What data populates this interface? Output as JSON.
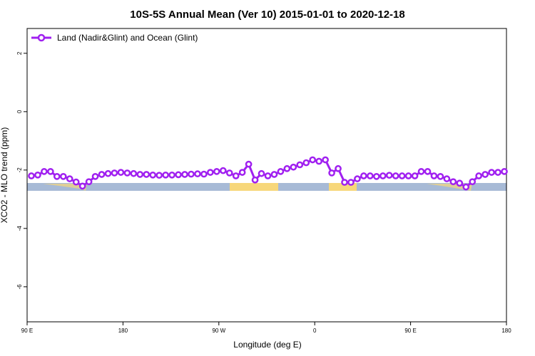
{
  "chart_data": {
    "type": "line",
    "title": "10S-5S Annual Mean (Ver 10)   2015-01-01 to 2020-12-18",
    "x_label": "Longitude (deg E)",
    "y_label": "XCO2 - MLO trend (ppm)",
    "x": [
      94,
      100,
      106,
      112,
      118,
      124,
      130,
      136,
      142,
      148,
      154,
      160,
      166,
      172,
      178,
      184,
      190,
      196,
      202,
      208,
      214,
      220,
      226,
      232,
      238,
      244,
      250,
      256,
      262,
      268,
      274,
      280,
      286,
      292,
      298,
      304,
      310,
      316,
      322,
      328,
      334,
      340,
      346,
      352,
      358,
      364,
      370,
      376,
      382,
      388,
      394,
      400,
      406,
      412,
      418,
      424,
      430,
      436,
      442,
      448,
      454,
      460,
      466,
      472,
      478,
      484,
      490,
      496,
      502,
      508,
      514,
      520,
      526,
      532,
      538
    ],
    "series": [
      {
        "name": "Land (Nadir&Glint) and Ocean (Glint)",
        "color": "#a020f0",
        "values": [
          -2.2,
          -2.17,
          -2.05,
          -2.05,
          -2.22,
          -2.22,
          -2.3,
          -2.41,
          -2.55,
          -2.4,
          -2.22,
          -2.15,
          -2.12,
          -2.1,
          -2.08,
          -2.1,
          -2.12,
          -2.15,
          -2.15,
          -2.17,
          -2.18,
          -2.17,
          -2.17,
          -2.16,
          -2.15,
          -2.14,
          -2.13,
          -2.14,
          -2.08,
          -2.05,
          -2.02,
          -2.1,
          -2.2,
          -2.08,
          -1.8,
          -2.34,
          -2.12,
          -2.2,
          -2.15,
          -2.05,
          -1.95,
          -1.9,
          -1.82,
          -1.75,
          -1.65,
          -1.7,
          -1.65,
          -2.1,
          -1.95,
          -2.42,
          -2.42,
          -2.3,
          -2.2,
          -2.2,
          -2.22,
          -2.2,
          -2.18,
          -2.2,
          -2.2,
          -2.2,
          -2.2,
          -2.05,
          -2.05,
          -2.2,
          -2.22,
          -2.3,
          -2.4,
          -2.45,
          -2.58,
          -2.4,
          -2.2,
          -2.15,
          -2.08,
          -2.08,
          -2.05
        ]
      }
    ],
    "xlim": [
      90,
      540
    ],
    "xticks": [
      {
        "value": 90,
        "label": "90 E"
      },
      180,
      {
        "value": 270,
        "label": "90 W"
      },
      0,
      {
        "value": 450,
        "label": "90 E"
      },
      {
        "value": 540,
        "label": "180"
      }
    ],
    "ylim": [
      -7.2,
      2.85
    ],
    "yticks": [
      -6,
      -4,
      -2,
      0,
      2
    ],
    "legend": "top-left"
  }
}
